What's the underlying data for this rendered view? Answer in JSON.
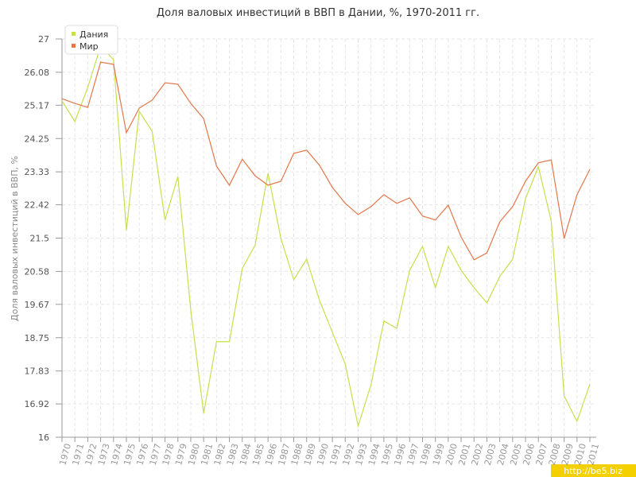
{
  "chart_data": {
    "type": "line",
    "title": "Доля валовых инвестиций в ВВП в Дании, %, 1970-2011 гг.",
    "y_label": "Доля валовых инвестиций в ВВП, %",
    "watermark": "http://be5.biz",
    "categories": [
      "1970",
      "1971",
      "1972",
      "1973",
      "1974",
      "1975",
      "1976",
      "1977",
      "1978",
      "1979",
      "1980",
      "1981",
      "1982",
      "1983",
      "1984",
      "1985",
      "1986",
      "1987",
      "1988",
      "1989",
      "1990",
      "1991",
      "1992",
      "1993",
      "1994",
      "1995",
      "1996",
      "1997",
      "1998",
      "1999",
      "2000",
      "2001",
      "2002",
      "2003",
      "2004",
      "2005",
      "2006",
      "2007",
      "2008",
      "2009",
      "2010",
      "2011"
    ],
    "series": [
      {
        "name": "Дания",
        "color": "#c5e04e",
        "values": [
          25.29,
          24.72,
          25.66,
          26.8,
          26.43,
          21.71,
          25.0,
          24.45,
          22.0,
          23.2,
          19.51,
          16.66,
          18.64,
          18.64,
          20.66,
          21.31,
          23.29,
          21.49,
          20.35,
          20.92,
          19.78,
          18.9,
          18.02,
          16.31,
          17.45,
          19.21,
          19.01,
          20.61,
          21.27,
          20.13,
          21.27,
          20.61,
          20.13,
          19.71,
          20.44,
          20.92,
          22.59,
          23.47,
          21.97,
          17.14,
          16.44,
          17.47
        ]
      },
      {
        "name": "Мир",
        "color": "#e2774a",
        "values": [
          25.35,
          25.22,
          25.11,
          26.36,
          26.3,
          24.41,
          25.09,
          25.31,
          25.79,
          25.75,
          25.22,
          24.8,
          23.49,
          22.96,
          23.68,
          23.22,
          22.96,
          23.07,
          23.84,
          23.93,
          23.51,
          22.9,
          22.46,
          22.15,
          22.37,
          22.7,
          22.46,
          22.61,
          22.11,
          22.0,
          22.41,
          21.53,
          20.9,
          21.09,
          21.95,
          22.37,
          23.07,
          23.58,
          23.66,
          21.49,
          22.7,
          23.4
        ]
      }
    ],
    "ylim": [
      16,
      27
    ],
    "yticks": [
      16,
      16.92,
      17.83,
      18.75,
      19.67,
      20.58,
      21.5,
      22.42,
      23.33,
      24.25,
      25.17,
      26.08,
      27
    ],
    "grid": true,
    "legend": "top-left"
  }
}
